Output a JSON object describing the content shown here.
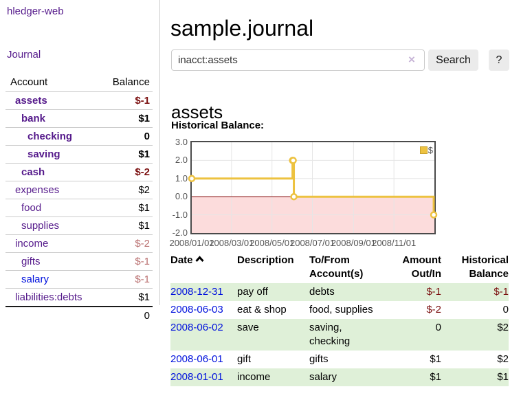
{
  "app": {
    "title": "hledger-web"
  },
  "sidebar": {
    "journal_link": "Journal",
    "table": {
      "account_header": "Account",
      "balance_header": "Balance",
      "rows": [
        {
          "account": "assets",
          "balance": "$-1",
          "level": 0,
          "strong": true,
          "balance_style": "neg-strong"
        },
        {
          "account": "bank",
          "balance": "$1",
          "level": 1,
          "strong": true,
          "balance_style": "pos"
        },
        {
          "account": "checking",
          "balance": "0",
          "level": 2,
          "strong": true,
          "balance_style": "pos"
        },
        {
          "account": "saving",
          "balance": "$1",
          "level": 2,
          "strong": true,
          "balance_style": "pos"
        },
        {
          "account": "cash",
          "balance": "$-2",
          "level": 1,
          "strong": true,
          "balance_style": "neg-strong"
        },
        {
          "account": "expenses",
          "balance": "$2",
          "level": 0,
          "strong": false,
          "balance_style": "pos"
        },
        {
          "account": "food",
          "balance": "$1",
          "level": 1,
          "strong": false,
          "balance_style": "pos"
        },
        {
          "account": "supplies",
          "balance": "$1",
          "level": 1,
          "strong": false,
          "balance_style": "pos"
        },
        {
          "account": "income",
          "balance": "$-2",
          "level": 0,
          "strong": false,
          "balance_style": "neg-light"
        },
        {
          "account": "gifts",
          "balance": "$-1",
          "level": 1,
          "strong": false,
          "balance_style": "neg-light"
        },
        {
          "account": "salary",
          "balance": "$-1",
          "level": 1,
          "strong": false,
          "balance_style": "neg-light",
          "link_style": "blue"
        },
        {
          "account": "liabilities:debts",
          "balance": "$1",
          "level": 0,
          "strong": false,
          "balance_style": "pos"
        }
      ],
      "total": "0"
    }
  },
  "header": {
    "title": "sample.journal"
  },
  "search": {
    "value": "inacct:assets",
    "clear_icon": "×",
    "button_label": "Search",
    "help_label": "?"
  },
  "account_page": {
    "heading": "assets",
    "chart_title": "Historical Balance:"
  },
  "chart_data": {
    "type": "line",
    "step": true,
    "series": [
      {
        "name": "$",
        "color": "#edc240",
        "points": [
          [
            "2008-01-01",
            1
          ],
          [
            "2008-06-01",
            2
          ],
          [
            "2008-06-02",
            2
          ],
          [
            "2008-06-03",
            0
          ],
          [
            "2008-12-31",
            -1
          ]
        ]
      }
    ],
    "ylim": [
      -2.0,
      3.0
    ],
    "xrange": [
      "2008/01/01",
      "2009/01/01"
    ],
    "ytick_labels": [
      "3.0",
      "2.0",
      "1.0",
      "0.0",
      "-1.0",
      "-2.0"
    ],
    "xtick_labels": [
      "2008/01/01",
      "2008/03/01",
      "2008/05/01",
      "2008/07/01",
      "2008/09/01",
      "2008/11/01"
    ],
    "grid": true,
    "grid_color": "#e6e6e6",
    "negative_region_color": "#fcdcdc",
    "zero_line_color": "#8f1c1c",
    "legend": {
      "position": "top-right",
      "label": "$"
    }
  },
  "transactions": {
    "headers": {
      "date": "Date",
      "sort_icon": "chevron-up",
      "description": "Description",
      "accounts": "To/From Account(s)",
      "amount": "Amount Out/In",
      "balance": "Historical Balance"
    },
    "rows": [
      {
        "date": "2008-12-31",
        "description": "pay off",
        "accounts": "debts",
        "amount": "$-1",
        "balance": "$-1"
      },
      {
        "date": "2008-06-03",
        "description": "eat & shop",
        "accounts": "food, supplies",
        "amount": "$-2",
        "balance": "0"
      },
      {
        "date": "2008-06-02",
        "description": "save",
        "accounts": "saving,\nchecking",
        "amount": "0",
        "balance": "$2"
      },
      {
        "date": "2008-06-01",
        "description": "gift",
        "accounts": "gifts",
        "amount": "$1",
        "balance": "$2"
      },
      {
        "date": "2008-01-01",
        "description": "income",
        "accounts": "salary",
        "amount": "$1",
        "balance": "$1"
      }
    ]
  }
}
